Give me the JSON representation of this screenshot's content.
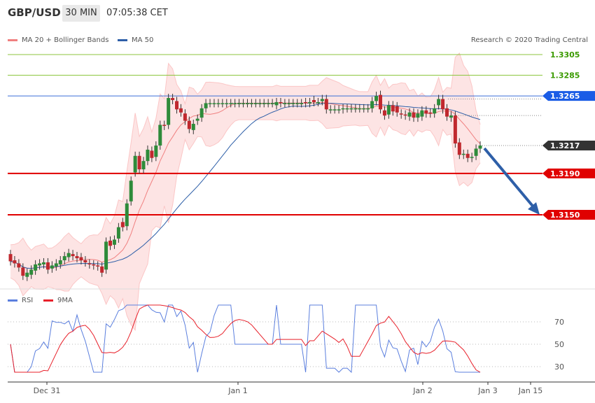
{
  "header": {
    "symbol": "GBP/USD",
    "timeframe": "30 MIN",
    "time": "07:05:38 CET"
  },
  "legend": {
    "ma20": "MA 20 + Bollinger Bands",
    "ma50": "MA 50",
    "ma20_color": "#f08080",
    "ma50_color": "#2e5fa8"
  },
  "credit": "Research © 2020 Trading Central",
  "rsi_legend": {
    "rsi": "RSI",
    "ma": "9MA",
    "rsi_color": "#5b7fde",
    "ma_color": "#e8202a"
  },
  "chart_data": {
    "type": "candlestick",
    "ylim": [
      1.3055,
      1.3345
    ],
    "levels": [
      {
        "label": "1.3305",
        "value": 1.3305,
        "style": "green"
      },
      {
        "label": "1.3285",
        "value": 1.3285,
        "style": "green"
      },
      {
        "label": "1.3265",
        "value": 1.3265,
        "style": "blue"
      },
      {
        "label": "1.3217",
        "value": 1.3217,
        "style": "dark"
      },
      {
        "label": "1.3190",
        "value": 1.319,
        "style": "red"
      },
      {
        "label": "1.3150",
        "value": 1.315,
        "style": "red"
      }
    ],
    "x_ticks": [
      "Dec 31",
      "Jan 1",
      "Jan 2",
      "Jan 3",
      "Jan 15"
    ],
    "candles": [
      [
        1.3112,
        1.3105
      ],
      [
        1.3106,
        1.3103
      ],
      [
        1.3103,
        1.3099
      ],
      [
        1.3099,
        1.3091
      ],
      [
        1.309,
        1.3094
      ],
      [
        1.3092,
        1.3097
      ],
      [
        1.3096,
        1.3102
      ],
      [
        1.3101,
        1.3103
      ],
      [
        1.3102,
        1.3104
      ],
      [
        1.3104,
        1.3097
      ],
      [
        1.3098,
        1.3101
      ],
      [
        1.31,
        1.3103
      ],
      [
        1.3102,
        1.3106
      ],
      [
        1.3106,
        1.311
      ],
      [
        1.3109,
        1.3113
      ],
      [
        1.3112,
        1.311
      ],
      [
        1.311,
        1.3108
      ],
      [
        1.3109,
        1.3106
      ],
      [
        1.3106,
        1.3104
      ],
      [
        1.3103,
        1.3102
      ],
      [
        1.3102,
        1.3101
      ],
      [
        1.3101,
        1.31
      ],
      [
        1.31,
        1.3094
      ],
      [
        1.3097,
        1.3124
      ],
      [
        1.3125,
        1.312
      ],
      [
        1.3121,
        1.3126
      ],
      [
        1.3127,
        1.3138
      ],
      [
        1.3143,
        1.3138
      ],
      [
        1.3139,
        1.3161
      ],
      [
        1.3163,
        1.3183
      ],
      [
        1.3191,
        1.3207
      ],
      [
        1.3207,
        1.3194
      ],
      [
        1.3194,
        1.3202
      ],
      [
        1.3202,
        1.3213
      ],
      [
        1.3212,
        1.3205
      ],
      [
        1.3206,
        1.3217
      ],
      [
        1.3217,
        1.3237
      ],
      [
        1.3237,
        1.3236
      ],
      [
        1.3237,
        1.3263
      ],
      [
        1.3263,
        1.3261
      ],
      [
        1.326,
        1.3252
      ],
      [
        1.3253,
        1.3249
      ],
      [
        1.3248,
        1.3241
      ],
      [
        1.3241,
        1.3233
      ],
      [
        1.3232,
        1.3238
      ],
      [
        1.3241,
        1.3243
      ],
      [
        1.3244,
        1.3253
      ],
      [
        1.3253,
        1.3258
      ],
      [
        1.3258,
        1.3258
      ],
      [
        1.3258,
        1.3258
      ],
      [
        1.3258,
        1.3258
      ],
      [
        1.3258,
        1.3258
      ],
      [
        1.3258,
        1.3258
      ],
      [
        1.3258,
        1.3258
      ],
      [
        1.3258,
        1.3258
      ],
      [
        1.3258,
        1.3258
      ],
      [
        1.3258,
        1.3258
      ],
      [
        1.3258,
        1.3258
      ],
      [
        1.3258,
        1.3258
      ],
      [
        1.3258,
        1.3258
      ],
      [
        1.3258,
        1.3258
      ],
      [
        1.3258,
        1.3258
      ],
      [
        1.3258,
        1.3258
      ],
      [
        1.3258,
        1.3258
      ],
      [
        1.3256,
        1.3259
      ],
      [
        1.3259,
        1.3258
      ],
      [
        1.3258,
        1.3258
      ],
      [
        1.3258,
        1.3258
      ],
      [
        1.3258,
        1.3258
      ],
      [
        1.3258,
        1.3258
      ],
      [
        1.3258,
        1.3258
      ],
      [
        1.3259,
        1.3258
      ],
      [
        1.3258,
        1.3259
      ],
      [
        1.3261,
        1.3259
      ],
      [
        1.3259,
        1.3259
      ],
      [
        1.326,
        1.3262
      ],
      [
        1.3262,
        1.3252
      ],
      [
        1.3252,
        1.3252
      ],
      [
        1.3252,
        1.3252
      ],
      [
        1.3252,
        1.3252
      ],
      [
        1.3252,
        1.3253
      ],
      [
        1.3253,
        1.3253
      ],
      [
        1.3253,
        1.3253
      ],
      [
        1.3253,
        1.3253
      ],
      [
        1.3253,
        1.3253
      ],
      [
        1.3253,
        1.3253
      ],
      [
        1.3253,
        1.3253
      ],
      [
        1.3253,
        1.326
      ],
      [
        1.326,
        1.3265
      ],
      [
        1.3266,
        1.3252
      ],
      [
        1.3251,
        1.3246
      ],
      [
        1.3247,
        1.3256
      ],
      [
        1.3256,
        1.325
      ],
      [
        1.3255,
        1.3249
      ],
      [
        1.3248,
        1.3247
      ],
      [
        1.3247,
        1.3246
      ],
      [
        1.3245,
        1.3249
      ],
      [
        1.3249,
        1.3244
      ],
      [
        1.3244,
        1.3248
      ],
      [
        1.3245,
        1.3251
      ],
      [
        1.3251,
        1.3248
      ],
      [
        1.3249,
        1.3248
      ],
      [
        1.3248,
        1.3253
      ],
      [
        1.3256,
        1.3262
      ],
      [
        1.3262,
        1.3252
      ],
      [
        1.3253,
        1.3245
      ],
      [
        1.3244,
        1.3246
      ],
      [
        1.3246,
        1.3219
      ],
      [
        1.322,
        1.3208
      ],
      [
        1.3208,
        1.3209
      ],
      [
        1.3209,
        1.3205
      ],
      [
        1.3205,
        1.3206
      ],
      [
        1.3207,
        1.3214
      ],
      [
        1.3214,
        1.3217
      ]
    ],
    "rsi": {
      "ylim": [
        18,
        88
      ],
      "ticks": [
        30,
        50,
        70
      ]
    }
  }
}
